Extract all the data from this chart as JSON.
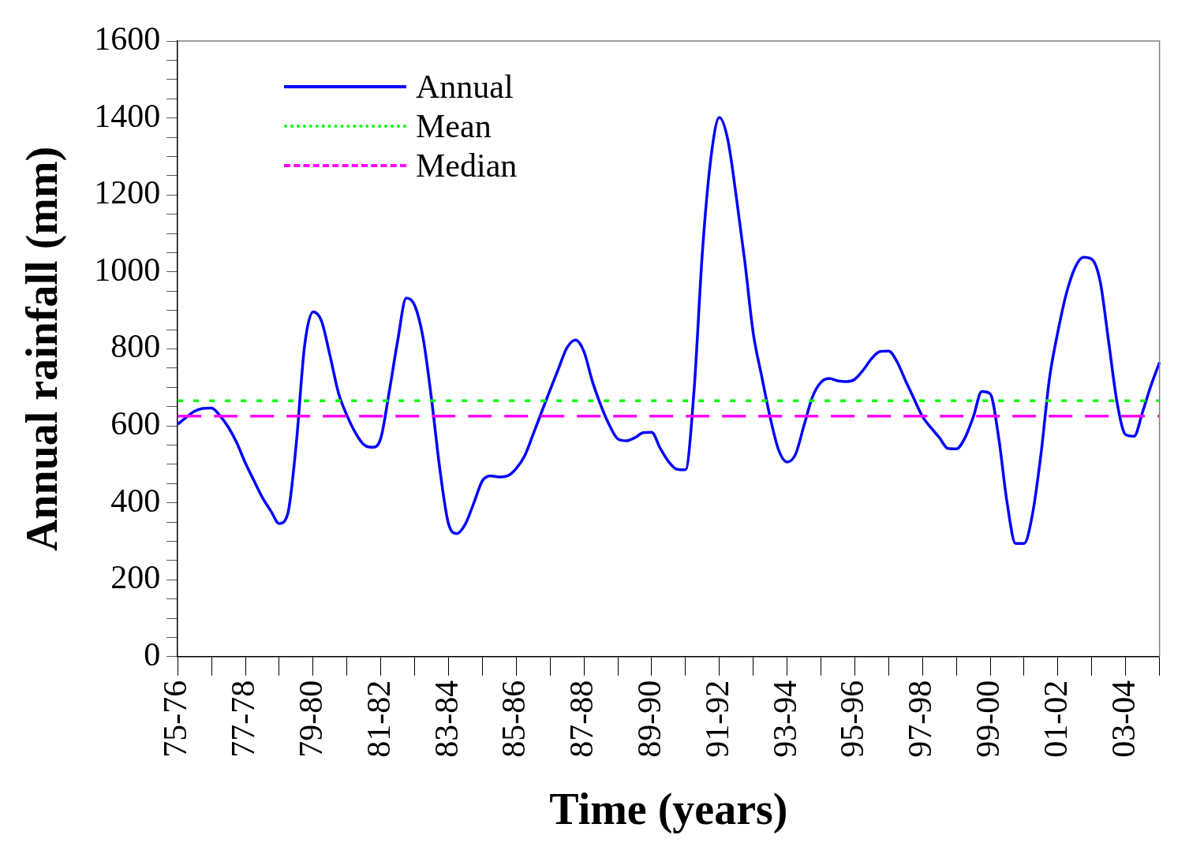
{
  "chart_data": {
    "type": "line",
    "xlabel": "Time (years)",
    "ylabel": "Annual rainfall (mm)",
    "categories": [
      "75-76",
      null,
      null,
      null,
      null,
      null,
      null,
      null,
      "77-78",
      null,
      null,
      null,
      null,
      null,
      null,
      null,
      "79-80",
      null,
      null,
      null,
      null,
      null,
      null,
      null,
      "81-82",
      null,
      null,
      null,
      null,
      null,
      null,
      null,
      "83-84",
      null,
      null,
      null,
      null,
      null,
      null,
      null,
      "85-86",
      null,
      null,
      null,
      null,
      null,
      null,
      null,
      "87-88",
      null,
      null,
      null,
      null,
      null,
      null,
      null,
      "89-90",
      null,
      null,
      null,
      null,
      null,
      null,
      null,
      "91-92",
      null,
      null,
      null,
      null,
      null,
      null,
      null,
      "93-94",
      null,
      null,
      null,
      null,
      null,
      null,
      null,
      "95-96",
      null,
      null,
      null,
      null,
      null,
      null,
      null,
      "97-98",
      null,
      null,
      null,
      null,
      null,
      null,
      null,
      "99-00",
      null,
      null,
      null,
      null,
      null,
      null,
      null,
      "01-02",
      null,
      null,
      null,
      null,
      null,
      null,
      null,
      "03-04",
      null,
      null,
      null,
      null
    ],
    "ylim": [
      0,
      1600
    ],
    "yticks": [
      0,
      {
        "value": 50,
        "label": null
      },
      {
        "value": 100,
        "label": null
      },
      {
        "value": 150,
        "label": null
      },
      200,
      {
        "value": 250,
        "label": null
      },
      {
        "value": 300,
        "label": null
      },
      {
        "value": 350,
        "label": null
      },
      400,
      {
        "value": 450,
        "label": null
      },
      {
        "value": 500,
        "label": null
      },
      {
        "value": 550,
        "label": null
      },
      600,
      {
        "value": 650,
        "label": null
      },
      {
        "value": 700,
        "label": null
      },
      {
        "value": 750,
        "label": null
      },
      800,
      {
        "value": 850,
        "label": null
      },
      {
        "value": 900,
        "label": null
      },
      {
        "value": 950,
        "label": null
      },
      1000,
      {
        "value": 1050,
        "label": null
      },
      {
        "value": 1100,
        "label": null
      },
      {
        "value": 1150,
        "label": null
      },
      1200,
      {
        "value": 1250,
        "label": null
      },
      {
        "value": 1300,
        "label": null
      },
      {
        "value": 1350,
        "label": null
      },
      1400,
      {
        "value": 1450,
        "label": null
      },
      {
        "value": 1500,
        "label": null
      },
      {
        "value": 1550,
        "label": null
      },
      1600
    ],
    "grid": false,
    "legend": "top left",
    "marker": "none",
    "series": [
      {
        "name": "Annual",
        "color": "#0000ff",
        "values": [
          604,
          622,
          638,
          645,
          646,
          626,
          596,
          555,
          503,
          458,
          414,
          379,
          346,
          371,
          551,
          809,
          896,
          872,
          782,
          685,
          627,
          582,
          551,
          544,
          568,
          689,
          822,
          932,
          913,
          828,
          668,
          483,
          345,
          320,
          345,
          400,
          457,
          470,
          467,
          470,
          489,
          522,
          578,
          636,
          693,
          749,
          803,
          823,
          793,
          715,
          653,
          602,
          566,
          561,
          569,
          582,
          583,
          542,
          507,
          487,
          486,
          689,
          1053,
          1296,
          1401,
          1343,
          1195,
          1028,
          841,
          729,
          622,
          537,
          506,
          526,
          601,
          675,
          713,
          723,
          717,
          715,
          721,
          745,
          775,
          793,
          794,
          766,
          717,
          670,
          624,
          595,
          569,
          541,
          540,
          568,
          623,
          689,
          683,
          569,
          399,
          294,
          294,
          371,
          527,
          723,
          845,
          944,
          1010,
          1038,
          1033,
          974,
          817,
          659,
          577,
          573,
          636,
          705,
          765
        ]
      }
    ],
    "ref_lines": [
      {
        "axis": "y",
        "value": 665,
        "label": "Mean",
        "color": "#00ff00",
        "line_style": "dotted"
      },
      {
        "axis": "y",
        "value": 625,
        "label": "Median",
        "color": "#ff00ff",
        "line_style": "dashed"
      }
    ]
  }
}
